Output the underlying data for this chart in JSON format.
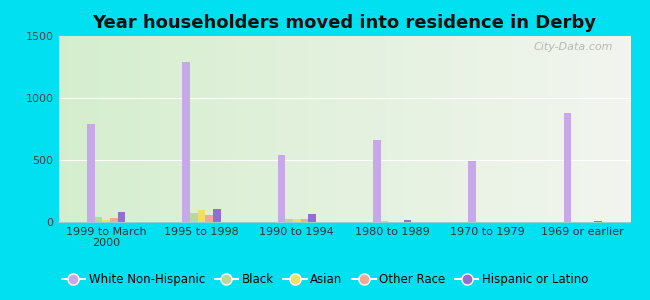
{
  "title": "Year householders moved into residence in Derby",
  "categories": [
    "1999 to March\n2000",
    "1995 to 1998",
    "1990 to 1994",
    "1980 to 1989",
    "1970 to 1979",
    "1969 or earlier"
  ],
  "series": {
    "White Non-Hispanic": [
      790,
      1290,
      540,
      660,
      490,
      880
    ],
    "Black": [
      40,
      75,
      25,
      5,
      3,
      3
    ],
    "Asian": [
      20,
      95,
      25,
      3,
      2,
      3
    ],
    "Other Race": [
      30,
      55,
      25,
      3,
      2,
      3
    ],
    "Hispanic or Latino": [
      80,
      105,
      65,
      18,
      3,
      8
    ]
  },
  "colors": {
    "White Non-Hispanic": "#c8a8e8",
    "Black": "#b8d8a0",
    "Asian": "#f0e060",
    "Other Race": "#f0a898",
    "Hispanic or Latino": "#9070c8"
  },
  "ylim": [
    0,
    1500
  ],
  "yticks": [
    0,
    500,
    1000,
    1500
  ],
  "background_outer": "#00e0f0",
  "bar_width": 0.08,
  "watermark": "City-Data.com",
  "title_fontsize": 13,
  "tick_fontsize": 8,
  "legend_fontsize": 8.5
}
